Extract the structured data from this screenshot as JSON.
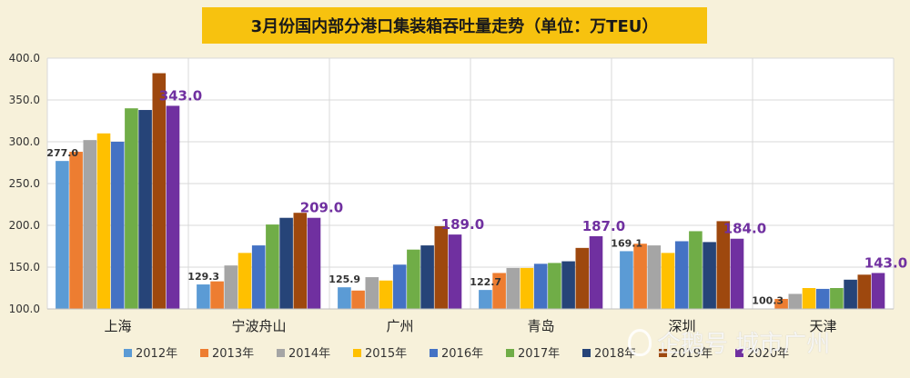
{
  "title": "3月份国内部分港口集装箱吞吐量走势（单位：万TEU）",
  "watermark": "企鹅号 城市广州",
  "chart_data": {
    "type": "bar",
    "title": "3月份国内部分港口集装箱吞吐量走势（单位：万TEU）",
    "categories": [
      "上海",
      "宁波舟山",
      "广州",
      "青岛",
      "深圳",
      "天津"
    ],
    "ylim": [
      100,
      400
    ],
    "yticks": [
      "100.0",
      "150.0",
      "200.0",
      "250.0",
      "300.0",
      "350.0",
      "400.0"
    ],
    "grid": true,
    "legend_position": "bottom",
    "series": [
      {
        "name": "2012年",
        "color": "#5b9bd5",
        "values": [
          277.0,
          129.3,
          125.9,
          122.7,
          169.1,
          100.3
        ]
      },
      {
        "name": "2013年",
        "color": "#ed7d31",
        "values": [
          288,
          133,
          122,
          143,
          178,
          112
        ]
      },
      {
        "name": "2014年",
        "color": "#a5a5a5",
        "values": [
          302,
          152,
          138,
          149,
          176,
          118
        ]
      },
      {
        "name": "2015年",
        "color": "#ffc000",
        "values": [
          310,
          167,
          134,
          149,
          167,
          125
        ]
      },
      {
        "name": "2016年",
        "color": "#4472c4",
        "values": [
          300,
          176,
          153,
          154,
          181,
          124
        ]
      },
      {
        "name": "2017年",
        "color": "#70ad47",
        "values": [
          340,
          201,
          171,
          155,
          193,
          125
        ]
      },
      {
        "name": "2018年",
        "color": "#264478",
        "values": [
          338,
          209,
          176,
          157,
          180,
          135
        ]
      },
      {
        "name": "2019年",
        "color": "#9e480e",
        "values": [
          382,
          215,
          199,
          173,
          205,
          141
        ]
      },
      {
        "name": "2020年",
        "color": "#7030a0",
        "values": [
          343.0,
          209.0,
          189.0,
          187.0,
          184.0,
          143.0
        ]
      }
    ],
    "data_labels": {
      "2012年": [
        "277.0",
        "129.3",
        "125.9",
        "122.7",
        "169.1",
        "100.3"
      ],
      "2020年": [
        "343.0",
        "209.0",
        "189.0",
        "187.0",
        "184.0",
        "143.0"
      ]
    },
    "label_colors": {
      "2012年": "#333333",
      "2020年": "#7030a0"
    }
  }
}
